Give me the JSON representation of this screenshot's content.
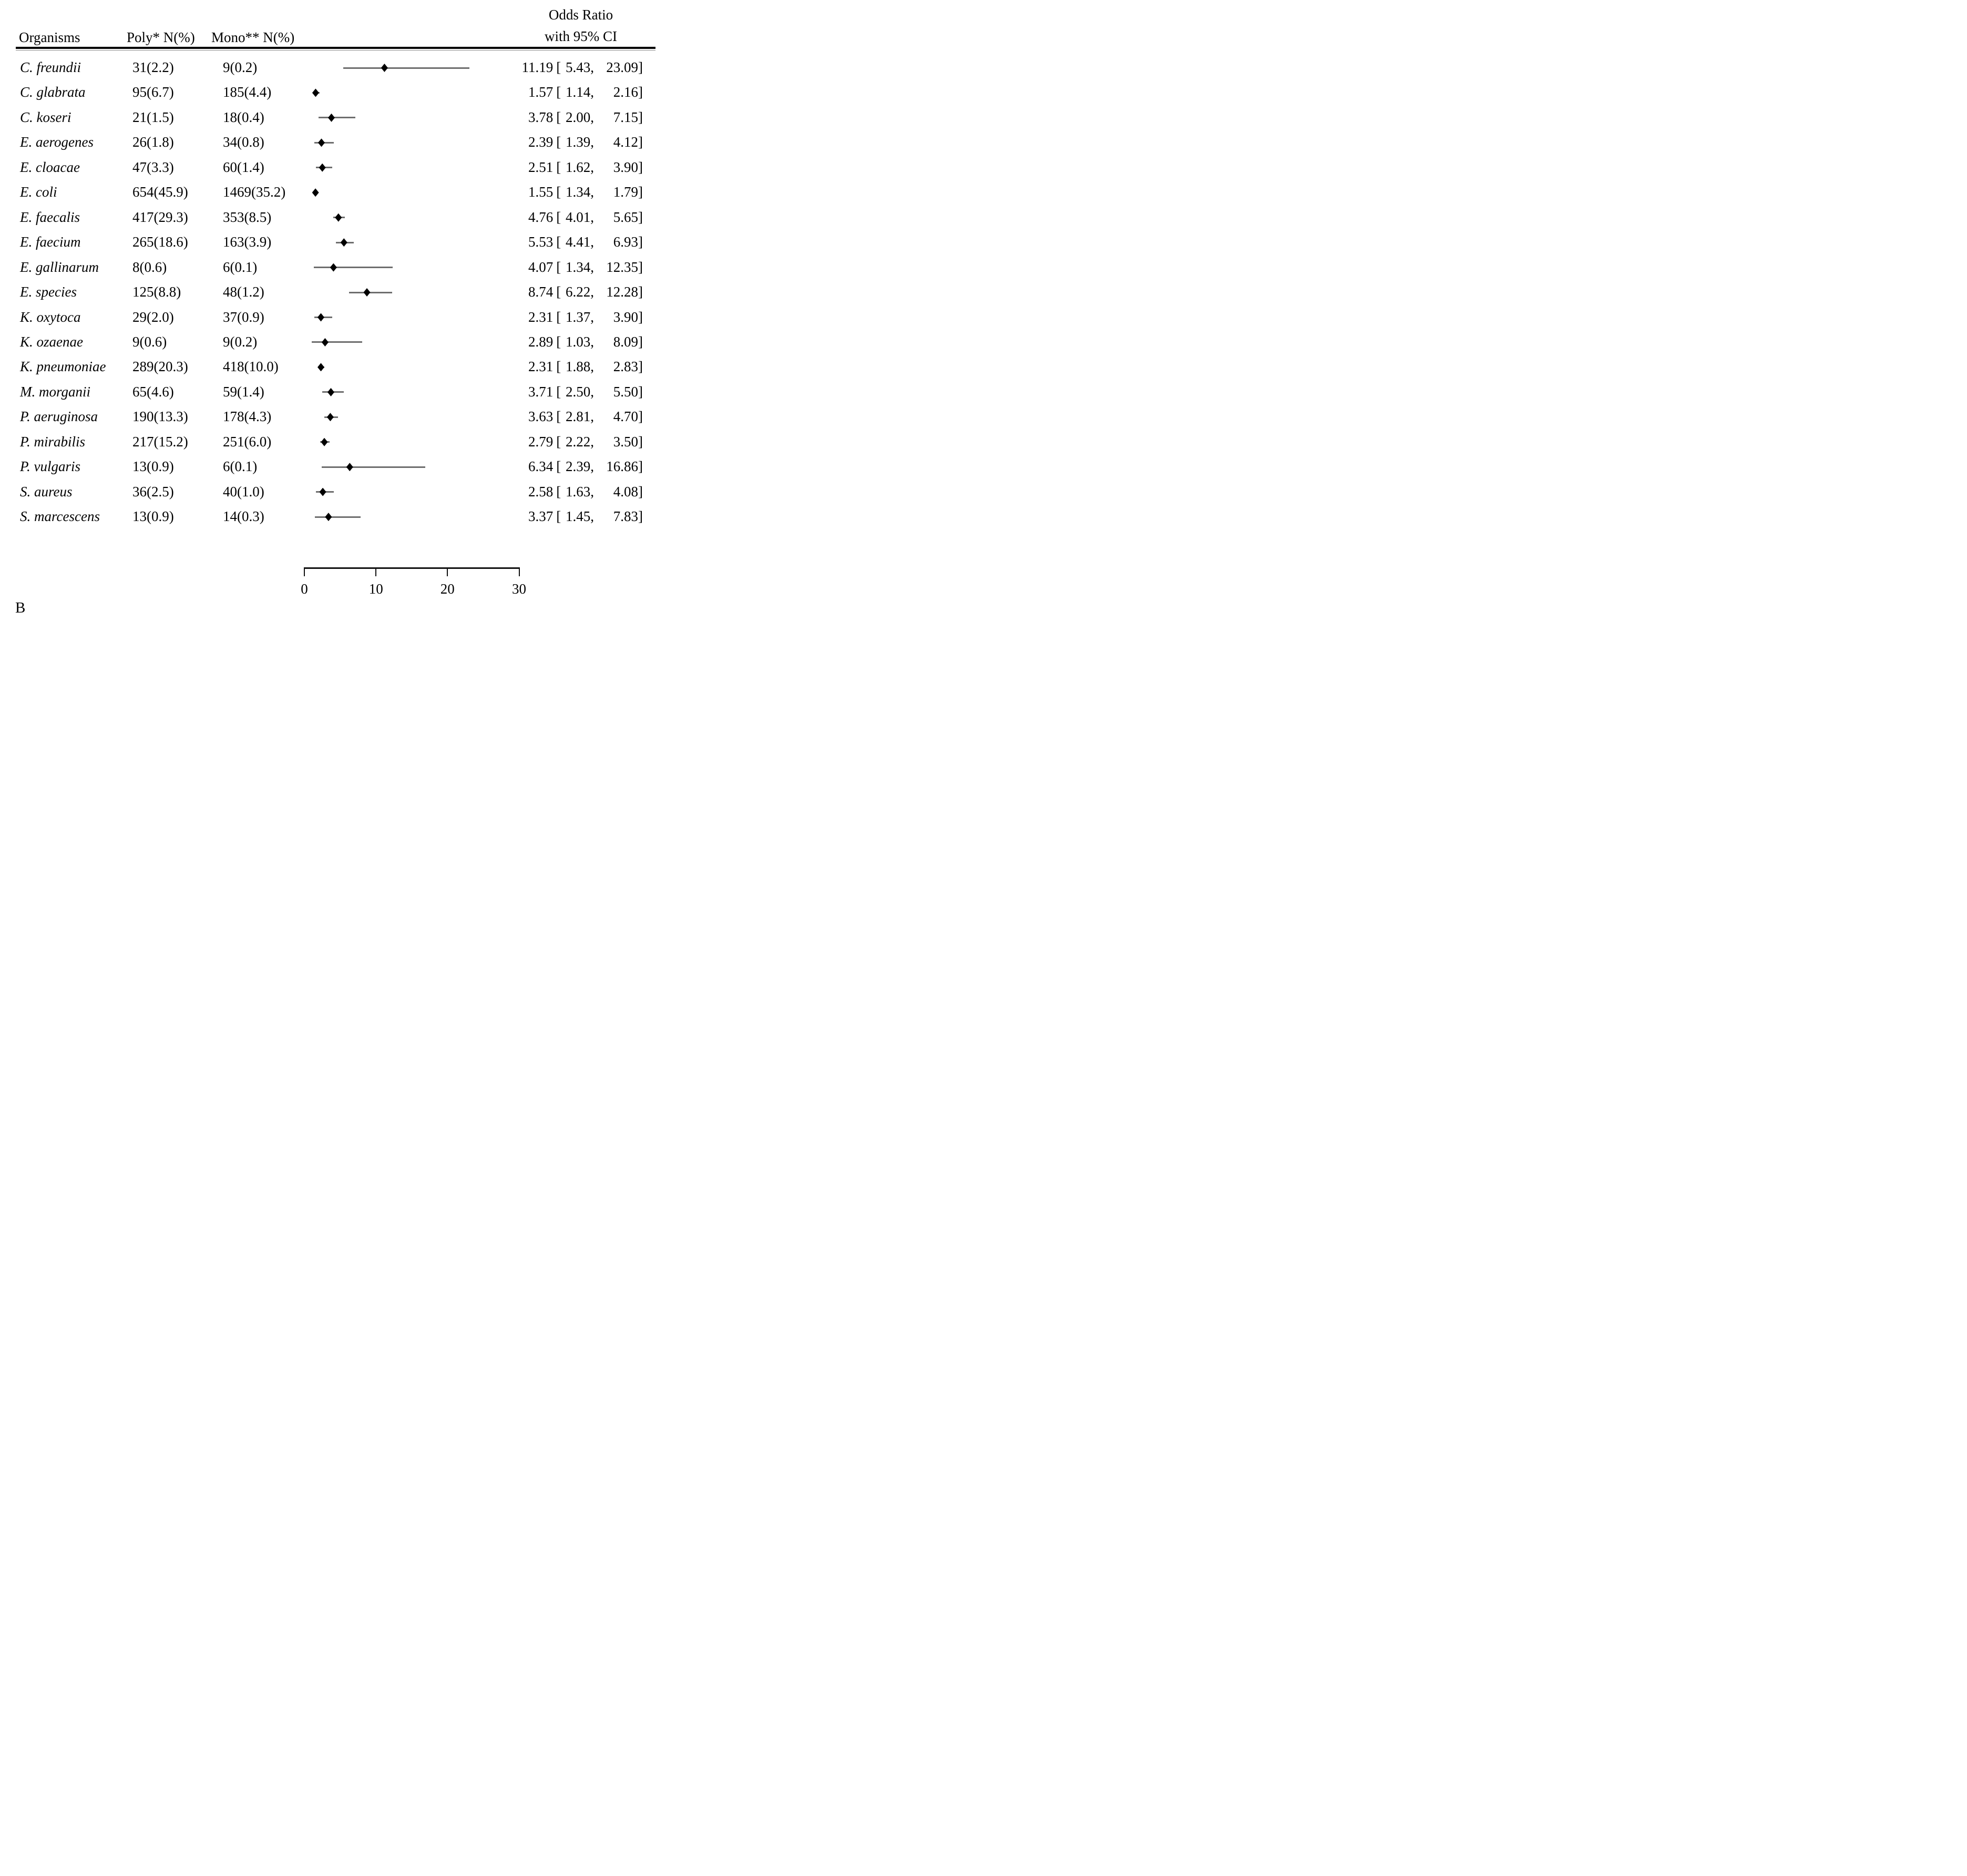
{
  "header": {
    "organisms": "Organisms",
    "poly": "Poly* N(%)",
    "mono": "Mono** N(%)",
    "odds_line1": "Odds Ratio",
    "odds_line2": "with 95% CI"
  },
  "panel_label": "B",
  "colors": {
    "background": "#ffffff",
    "text": "#000000",
    "ci_line": "#6e6e6e",
    "marker": "#000000",
    "axis": "#111111"
  },
  "chart_data": {
    "type": "forest",
    "title": "Odds Ratio with 95% CI",
    "xlim": [
      0,
      30
    ],
    "x_ticks": [
      0,
      10,
      20,
      30
    ],
    "grid": false,
    "ci_punctuation": {
      "open": "[",
      "sep": ",",
      "close": "]"
    },
    "rows": [
      {
        "organism": "C. freundii",
        "poly": "31(2.2)",
        "mono": "9(0.2)",
        "or": 11.19,
        "ci_low": 5.43,
        "ci_high": 23.09
      },
      {
        "organism": "C. glabrata",
        "poly": "95(6.7)",
        "mono": "185(4.4)",
        "or": 1.57,
        "ci_low": 1.14,
        "ci_high": 2.16
      },
      {
        "organism": "C. koseri",
        "poly": "21(1.5)",
        "mono": "18(0.4)",
        "or": 3.78,
        "ci_low": 2.0,
        "ci_high": 7.15
      },
      {
        "organism": "E. aerogenes",
        "poly": "26(1.8)",
        "mono": "34(0.8)",
        "or": 2.39,
        "ci_low": 1.39,
        "ci_high": 4.12
      },
      {
        "organism": "E. cloacae",
        "poly": "47(3.3)",
        "mono": "60(1.4)",
        "or": 2.51,
        "ci_low": 1.62,
        "ci_high": 3.9
      },
      {
        "organism": "E. coli",
        "poly": "654(45.9)",
        "mono": "1469(35.2)",
        "or": 1.55,
        "ci_low": 1.34,
        "ci_high": 1.79
      },
      {
        "organism": "E. faecalis",
        "poly": "417(29.3)",
        "mono": "353(8.5)",
        "or": 4.76,
        "ci_low": 4.01,
        "ci_high": 5.65
      },
      {
        "organism": "E. faecium",
        "poly": "265(18.6)",
        "mono": "163(3.9)",
        "or": 5.53,
        "ci_low": 4.41,
        "ci_high": 6.93
      },
      {
        "organism": "E. gallinarum",
        "poly": "8(0.6)",
        "mono": "6(0.1)",
        "or": 4.07,
        "ci_low": 1.34,
        "ci_high": 12.35
      },
      {
        "organism": "E. species",
        "poly": "125(8.8)",
        "mono": "48(1.2)",
        "or": 8.74,
        "ci_low": 6.22,
        "ci_high": 12.28
      },
      {
        "organism": "K. oxytoca",
        "poly": "29(2.0)",
        "mono": "37(0.9)",
        "or": 2.31,
        "ci_low": 1.37,
        "ci_high": 3.9
      },
      {
        "organism": "K. ozaenae",
        "poly": "9(0.6)",
        "mono": "9(0.2)",
        "or": 2.89,
        "ci_low": 1.03,
        "ci_high": 8.09
      },
      {
        "organism": "K. pneumoniae",
        "poly": "289(20.3)",
        "mono": "418(10.0)",
        "or": 2.31,
        "ci_low": 1.88,
        "ci_high": 2.83
      },
      {
        "organism": "M. morganii",
        "poly": "65(4.6)",
        "mono": "59(1.4)",
        "or": 3.71,
        "ci_low": 2.5,
        "ci_high": 5.5
      },
      {
        "organism": "P. aeruginosa",
        "poly": "190(13.3)",
        "mono": "178(4.3)",
        "or": 3.63,
        "ci_low": 2.81,
        "ci_high": 4.7
      },
      {
        "organism": "P. mirabilis",
        "poly": "217(15.2)",
        "mono": "251(6.0)",
        "or": 2.79,
        "ci_low": 2.22,
        "ci_high": 3.5
      },
      {
        "organism": "P. vulgaris",
        "poly": "13(0.9)",
        "mono": "6(0.1)",
        "or": 6.34,
        "ci_low": 2.39,
        "ci_high": 16.86
      },
      {
        "organism": "S. aureus",
        "poly": "36(2.5)",
        "mono": "40(1.0)",
        "or": 2.58,
        "ci_low": 1.63,
        "ci_high": 4.08
      },
      {
        "organism": "S. marcescens",
        "poly": "13(0.9)",
        "mono": "14(0.3)",
        "or": 3.37,
        "ci_low": 1.45,
        "ci_high": 7.83
      }
    ]
  }
}
